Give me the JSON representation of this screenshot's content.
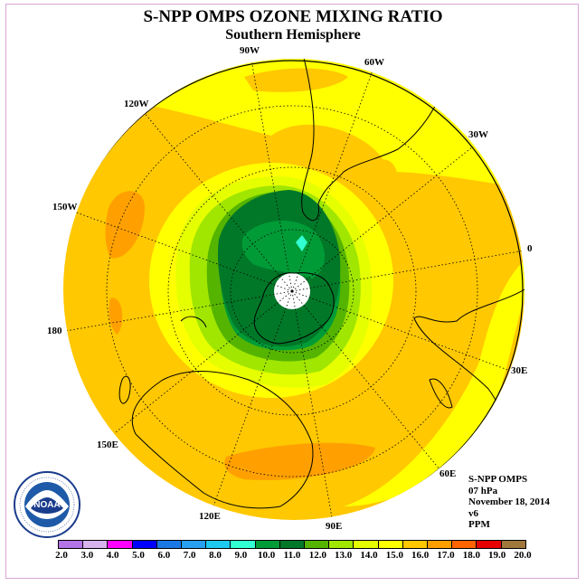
{
  "title": "S-NPP OMPS OZONE MIXING RATIO",
  "subtitle": "Southern Hemisphere",
  "longitude_labels": {
    "w90": "90W",
    "w60": "60W",
    "w30": "30W",
    "e0": "0",
    "e30": "30E",
    "e60": "60E",
    "e90": "90E",
    "e120": "120E",
    "e150": "150E",
    "e180": "180",
    "w150": "150W",
    "w120": "120W"
  },
  "info": {
    "instrument": "S-NPP OMPS",
    "level": "07 hPa",
    "date": "November 18, 2014",
    "version": "v6",
    "units": "PPM"
  },
  "logo_text": "NOAA",
  "colorbar": {
    "ticks": [
      "2.0",
      "3.0",
      "4.0",
      "5.0",
      "6.0",
      "7.0",
      "8.0",
      "9.0",
      "10.0",
      "11.0",
      "12.0",
      "13.0",
      "14.0",
      "15.0",
      "16.0",
      "17.0",
      "18.0",
      "19.0",
      "20.0"
    ],
    "colors": [
      "#b473e6",
      "#d7b4ee",
      "#ff00ff",
      "#0000ff",
      "#1a78e6",
      "#28a0f0",
      "#1ec8f0",
      "#32ffd2",
      "#009b37",
      "#007828",
      "#55b400",
      "#a0e600",
      "#e6ff00",
      "#ffff00",
      "#ffc800",
      "#ffa000",
      "#ff6400",
      "#e60000",
      "#a0783c"
    ]
  },
  "colors": {
    "ocean_yellow": "#ffff00",
    "band_orange": "#ffc800",
    "band_dark_orange": "#ffa000",
    "green_light": "#a0e600",
    "green_mid": "#55b400",
    "green_dark": "#009b37",
    "green_darkest": "#007828",
    "cyan": "#32ffd2"
  }
}
